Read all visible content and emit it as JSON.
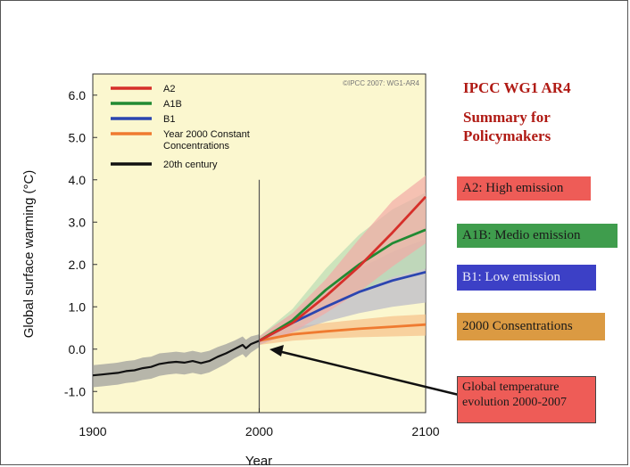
{
  "sidebar": {
    "title": "IPCC WG1 AR4",
    "subtitle_line1": "Summary for",
    "subtitle_line2": "Policymakers",
    "labels": [
      {
        "text": "A2: High emission",
        "color": "#ee5c57"
      },
      {
        "text": "A1B: Medio emission",
        "color": "#3f9d4d"
      },
      {
        "text": "B1: Low emission",
        "color": "#3c40c6"
      },
      {
        "text": "2000 Consentrations",
        "color": "#db9a42"
      }
    ],
    "note_line1": "Global temperature",
    "note_line2": "evolution 2000-2007",
    "note_color": "#ee5c57"
  },
  "chart_data": {
    "type": "line",
    "ylabel": "Global surface warming (°C)",
    "xlabel": "Year",
    "xlim": [
      1900,
      2100
    ],
    "ylim": [
      -1.5,
      6.5
    ],
    "xticks": [
      1900,
      2000,
      2100
    ],
    "yticks": [
      -1.0,
      0.0,
      1.0,
      2.0,
      3.0,
      4.0,
      5.0,
      6.0
    ],
    "xtick_labels": [
      "1900",
      "2000",
      "2100"
    ],
    "ytick_labels": [
      "-1.0",
      "0.0",
      "1.0",
      "2.0",
      "3.0",
      "4.0",
      "5.0",
      "6.0"
    ],
    "copyright": "©IPCC 2007: WG1-AR4",
    "background": "#fbf7cf",
    "vline_year": 2000,
    "legend": [
      {
        "name": "A2",
        "color": "#d62f2a"
      },
      {
        "name": "A1B",
        "color": "#218a33"
      },
      {
        "name": "B1",
        "color": "#2b45b0"
      },
      {
        "name": "Year 2000 Constant",
        "name2": "Concentrations",
        "color": "#ef7a30"
      },
      {
        "name": "20th century",
        "color": "#111111"
      }
    ],
    "series": [
      {
        "name": "20th century",
        "color": "#111111",
        "band_color": "#9a9a9a",
        "x": [
          1900,
          1905,
          1910,
          1915,
          1920,
          1925,
          1930,
          1935,
          1940,
          1945,
          1950,
          1955,
          1960,
          1965,
          1970,
          1975,
          1980,
          1985,
          1990,
          1992,
          1995,
          2000
        ],
        "y": [
          -0.62,
          -0.6,
          -0.58,
          -0.56,
          -0.52,
          -0.5,
          -0.45,
          -0.42,
          -0.35,
          -0.32,
          -0.3,
          -0.32,
          -0.28,
          -0.33,
          -0.28,
          -0.18,
          -0.1,
          0.0,
          0.1,
          0.02,
          0.12,
          0.2
        ],
        "lo": [
          -0.9,
          -0.88,
          -0.86,
          -0.84,
          -0.8,
          -0.78,
          -0.73,
          -0.7,
          -0.63,
          -0.6,
          -0.58,
          -0.6,
          -0.56,
          -0.6,
          -0.55,
          -0.45,
          -0.35,
          -0.22,
          -0.12,
          -0.2,
          -0.08,
          0.05
        ],
        "hi": [
          -0.38,
          -0.36,
          -0.34,
          -0.32,
          -0.28,
          -0.26,
          -0.2,
          -0.18,
          -0.1,
          -0.08,
          -0.06,
          -0.08,
          -0.04,
          -0.08,
          -0.04,
          0.05,
          0.12,
          0.2,
          0.3,
          0.22,
          0.3,
          0.35
        ]
      },
      {
        "name": "Year 2000 Constant Concentrations",
        "color": "#ef7a30",
        "band_color": "#f7c189",
        "x": [
          2000,
          2020,
          2040,
          2060,
          2080,
          2100
        ],
        "y": [
          0.2,
          0.35,
          0.42,
          0.48,
          0.53,
          0.58
        ],
        "lo": [
          0.1,
          0.2,
          0.25,
          0.28,
          0.3,
          0.32
        ],
        "hi": [
          0.3,
          0.52,
          0.62,
          0.7,
          0.78,
          0.82
        ]
      },
      {
        "name": "B1",
        "color": "#2b45b0",
        "band_color": "#b8b8c8",
        "x": [
          2000,
          2020,
          2040,
          2060,
          2080,
          2100
        ],
        "y": [
          0.2,
          0.62,
          1.0,
          1.35,
          1.62,
          1.82
        ],
        "lo": [
          0.1,
          0.4,
          0.65,
          0.85,
          1.0,
          1.1
        ],
        "hi": [
          0.3,
          0.85,
          1.4,
          1.9,
          2.3,
          2.6
        ]
      },
      {
        "name": "A1B",
        "color": "#218a33",
        "band_color": "#b9dcb4",
        "x": [
          2000,
          2020,
          2040,
          2060,
          2080,
          2100
        ],
        "y": [
          0.2,
          0.68,
          1.4,
          2.0,
          2.5,
          2.82
        ],
        "lo": [
          0.1,
          0.45,
          0.95,
          1.35,
          1.7,
          1.9
        ],
        "hi": [
          0.3,
          0.95,
          1.9,
          2.7,
          3.3,
          3.7
        ]
      },
      {
        "name": "A2",
        "color": "#d62f2a",
        "band_color": "#f2aaa5",
        "x": [
          2000,
          2020,
          2040,
          2060,
          2080,
          2100
        ],
        "y": [
          0.2,
          0.62,
          1.25,
          1.95,
          2.75,
          3.6
        ],
        "lo": [
          0.1,
          0.4,
          0.85,
          1.35,
          1.95,
          2.5
        ],
        "hi": [
          0.3,
          0.85,
          1.65,
          2.6,
          3.5,
          4.1
        ]
      }
    ],
    "annotation": {
      "text_ref": "sidebar.note",
      "from_x": 2000,
      "from_y": 0.05
    }
  }
}
